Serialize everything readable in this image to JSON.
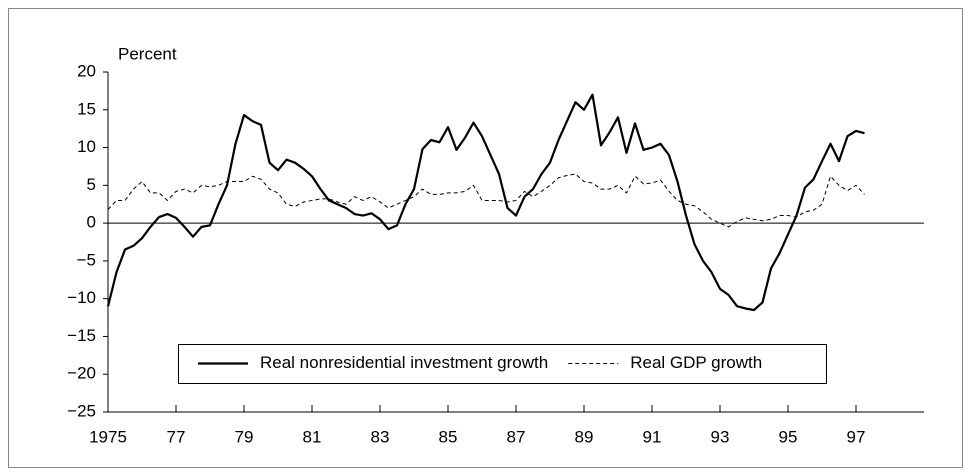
{
  "chart_data": {
    "type": "line",
    "y_axis_label": "Percent",
    "x": [
      1975,
      1975.25,
      1975.5,
      1975.75,
      1976,
      1976.25,
      1976.5,
      1976.75,
      1977,
      1977.25,
      1977.5,
      1977.75,
      1978,
      1978.25,
      1978.5,
      1978.75,
      1979,
      1979.25,
      1979.5,
      1979.75,
      1980,
      1980.25,
      1980.5,
      1980.75,
      1981,
      1981.25,
      1981.5,
      1981.75,
      1982,
      1982.25,
      1982.5,
      1982.75,
      1983,
      1983.25,
      1983.5,
      1983.75,
      1984,
      1984.25,
      1984.5,
      1984.75,
      1985,
      1985.25,
      1985.5,
      1985.75,
      1986,
      1986.25,
      1986.5,
      1986.75,
      1987,
      1987.25,
      1987.5,
      1987.75,
      1988,
      1988.25,
      1988.5,
      1988.75,
      1989,
      1989.25,
      1989.5,
      1989.75,
      1990,
      1990.25,
      1990.5,
      1990.75,
      1991,
      1991.25,
      1991.5,
      1991.75,
      1992,
      1992.25,
      1992.5,
      1992.75,
      1993,
      1993.25,
      1993.5,
      1993.75,
      1994,
      1994.25,
      1994.5,
      1994.75,
      1995,
      1995.25,
      1995.5,
      1995.75,
      1996,
      1996.25,
      1996.5,
      1996.75,
      1997,
      1997.25
    ],
    "series": [
      {
        "name": "Real nonresidential investment growth",
        "color": "#000000",
        "style": "solid",
        "values": [
          -11,
          -6.5,
          -3.5,
          -3,
          -2,
          -0.5,
          0.8,
          1.2,
          0.7,
          -0.5,
          -1.8,
          -0.5,
          -0.3,
          2.5,
          5,
          10.5,
          14.3,
          13.5,
          13,
          8,
          7,
          8.4,
          8,
          7.2,
          6.2,
          4.5,
          3,
          2.5,
          2,
          1.2,
          1,
          1.3,
          0.5,
          -0.8,
          -0.3,
          2.5,
          4.5,
          9.8,
          11,
          10.7,
          12.7,
          9.7,
          11.3,
          13.3,
          11.5,
          9,
          6.5,
          2,
          1,
          3.5,
          4.5,
          6.5,
          8,
          11,
          13.5,
          16,
          15,
          17,
          10.3,
          12,
          14,
          9.3,
          13.2,
          9.7,
          10,
          10.5,
          9,
          5.5,
          1,
          -2.8,
          -5,
          -6.5,
          -8.7,
          -9.5,
          -11,
          -11.3,
          -11.5,
          -10.5,
          -6,
          -4,
          -1.5,
          1,
          4.7,
          5.8,
          8.2,
          10.5,
          8.2,
          11.5,
          12.2,
          11.9
        ]
      },
      {
        "name": "Real GDP growth",
        "color": "#000000",
        "style": "dashed",
        "values": [
          1.8,
          3,
          3,
          4.5,
          5.5,
          4,
          4,
          3,
          4.2,
          4.5,
          4,
          5,
          4.8,
          5,
          5.5,
          5.5,
          5.5,
          6.2,
          5.8,
          4.5,
          4,
          2.5,
          2.2,
          2.8,
          3,
          3.2,
          3.2,
          2.8,
          2.5,
          3.5,
          3,
          3.5,
          2.8,
          2,
          2.5,
          3,
          3.5,
          4.5,
          3.8,
          3.8,
          4,
          4,
          4.2,
          5,
          3,
          3,
          3,
          2.8,
          3,
          4.2,
          3.5,
          4.2,
          5,
          6,
          6.3,
          6.5,
          5.5,
          5.3,
          4.5,
          4.5,
          5,
          4,
          6.2,
          5.2,
          5.3,
          5.7,
          4.2,
          3,
          2.5,
          2.3,
          1.5,
          0.5,
          0,
          -0.5,
          0.2,
          0.7,
          0.5,
          0.3,
          0.5,
          1,
          1,
          0.8,
          1.5,
          1.7,
          2.5,
          6.2,
          5,
          4.3,
          5,
          3.8
        ]
      }
    ],
    "xlim": [
      1975,
      1999
    ],
    "xticks": [
      1975,
      {
        "value": 1977,
        "label": "77"
      },
      {
        "value": 1979,
        "label": "79"
      },
      {
        "value": 1981,
        "label": "81"
      },
      {
        "value": 1983,
        "label": "83"
      },
      {
        "value": 1985,
        "label": "85"
      },
      {
        "value": 1987,
        "label": "87"
      },
      {
        "value": 1989,
        "label": "89"
      },
      {
        "value": 1991,
        "label": "91"
      },
      {
        "value": 1993,
        "label": "93"
      },
      {
        "value": 1995,
        "label": "95"
      },
      {
        "value": 1997,
        "label": "97"
      }
    ],
    "ylim": [
      -25,
      20
    ],
    "yticks": [
      {
        "value": -25,
        "label": "−25"
      },
      {
        "value": -20,
        "label": "−20"
      },
      {
        "value": -15,
        "label": "−15"
      },
      {
        "value": -10,
        "label": "−10"
      },
      {
        "value": -5,
        "label": "−5"
      },
      0,
      5,
      10,
      15,
      20
    ],
    "zero_line": true,
    "legend": "bottom"
  }
}
